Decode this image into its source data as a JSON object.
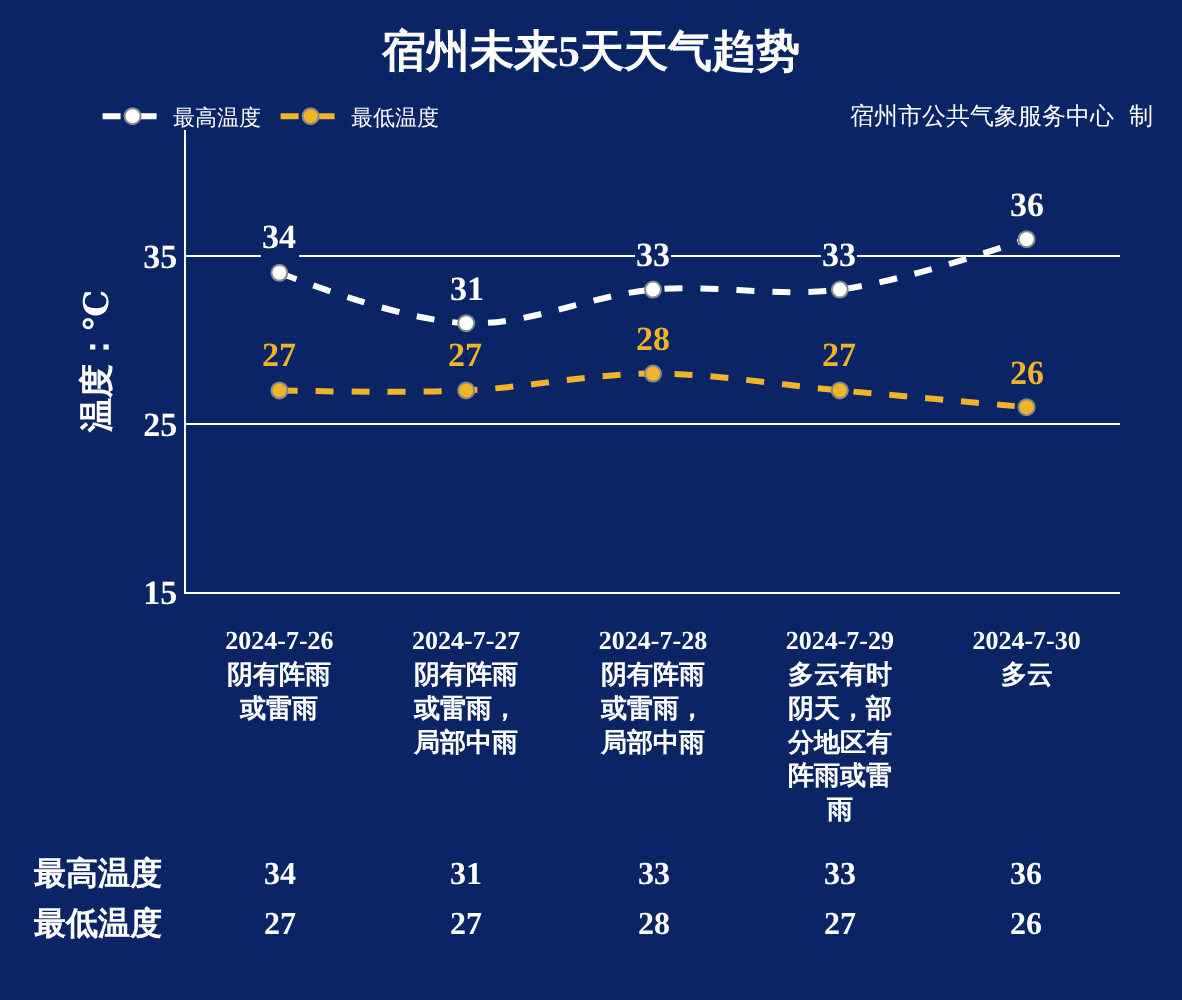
{
  "chart_data": {
    "type": "line",
    "title": "宿州未来5天天气趋势",
    "ylabel": "温度：℃",
    "annotations": [
      "宿州市公共气象服务中心  制"
    ],
    "categories": [
      "2024-7-26阴有阵雨或雷雨",
      "2024-7-27阴有阵雨或雷雨，局部中雨",
      "2024-7-28阴有阵雨或雷雨，局部中雨",
      "2024-7-29多云有时阴天，部分地区有阵雨或雷雨",
      "2024-7-30多云"
    ],
    "series": [
      {
        "name": "最高温度",
        "color": "#ffffff",
        "values": [
          34,
          31,
          33,
          33,
          36
        ],
        "value_labels": [
          "34",
          "31",
          "33",
          "33",
          "36"
        ]
      },
      {
        "name": "最低温度",
        "color": "#f0b429",
        "values": [
          27,
          27,
          28,
          27,
          26
        ],
        "value_labels": [
          "27",
          "27",
          "28",
          "27",
          "26"
        ]
      }
    ],
    "ylim": [
      15,
      42.5
    ],
    "yticks": [
      15,
      25,
      35
    ],
    "grid": "y",
    "legend": "top left",
    "marker": "circle",
    "line_style": "dashed",
    "data_labels": true
  }
}
